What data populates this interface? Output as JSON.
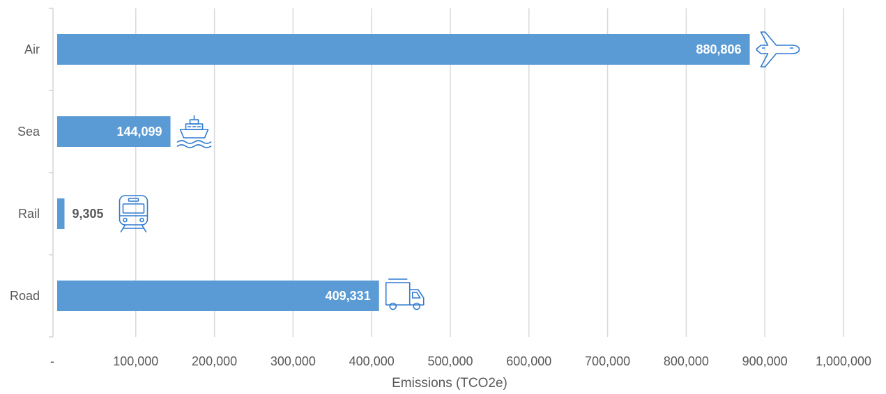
{
  "chart_data": {
    "type": "bar",
    "orientation": "horizontal",
    "categories": [
      "Air",
      "Sea",
      "Rail",
      "Road"
    ],
    "values": [
      880806,
      144099,
      9305,
      409331
    ],
    "data_labels": [
      "880,806",
      "144,099",
      "9,305",
      "409,331"
    ],
    "category_icons": [
      "airplane-icon",
      "ship-icon",
      "train-icon",
      "truck-icon"
    ],
    "xlabel": "Emissions (TCO2e)",
    "xlim": [
      0,
      1000000
    ],
    "x_ticks": [
      0,
      100000,
      200000,
      300000,
      400000,
      500000,
      600000,
      700000,
      800000,
      900000,
      1000000
    ],
    "x_tick_labels": [
      "-",
      "100,000",
      "200,000",
      "300,000",
      "400,000",
      "500,000",
      "600,000",
      "700,000",
      "800,000",
      "900,000",
      "1,000,000"
    ],
    "grid": true,
    "legend": "none",
    "colors": {
      "bar": "#5b9bd5",
      "icon": "#2f7bd0",
      "grid": "#d9d9d9",
      "axis": "#bfbfbf",
      "text": "#595959",
      "label_inside": "#ffffff",
      "label_outside": "#595959"
    }
  }
}
